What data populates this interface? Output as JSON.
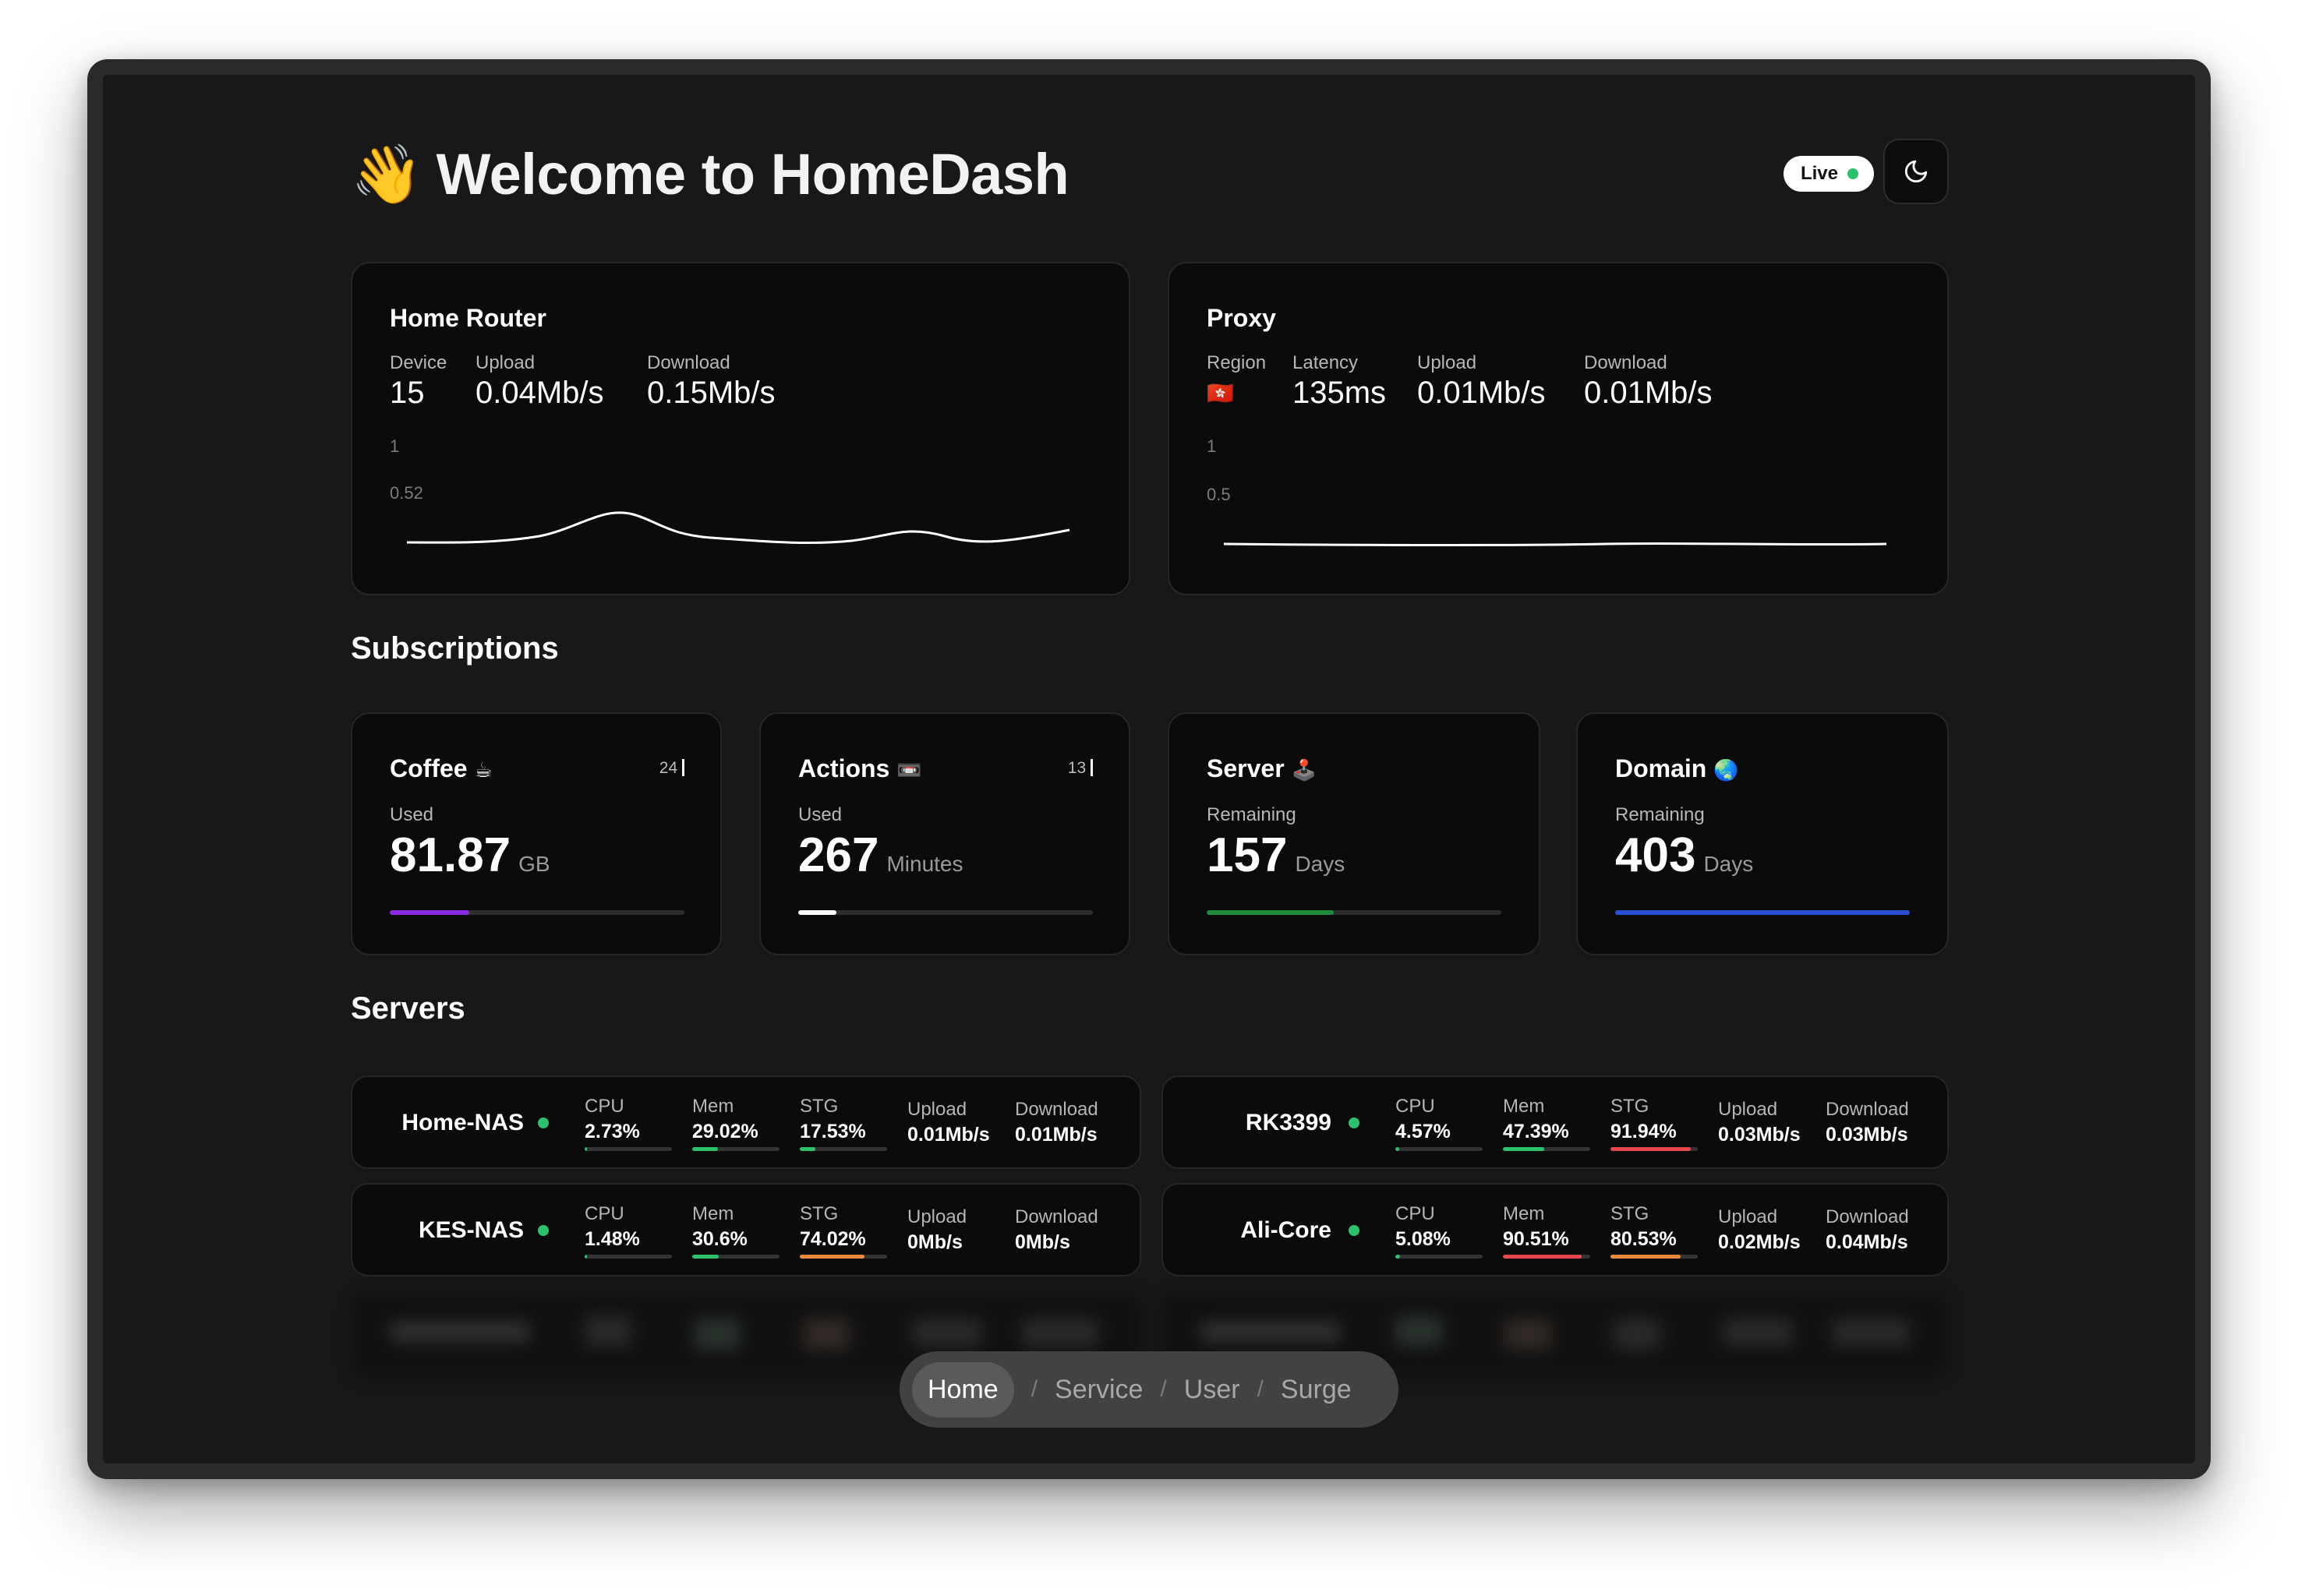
{
  "header": {
    "wave_emoji": "👋",
    "title": "Welcome to HomeDash",
    "live_label": "Live"
  },
  "router": {
    "title": "Home Router",
    "stats": [
      {
        "label": "Device",
        "value": "15"
      },
      {
        "label": "Upload",
        "value": "0.04Mb/s"
      },
      {
        "label": "Download",
        "value": "0.15Mb/s"
      }
    ],
    "axis_top": "1",
    "axis_mid": "0.52"
  },
  "proxy": {
    "title": "Proxy",
    "region_label": "Region",
    "region_flag": "🇭🇰",
    "stats": [
      {
        "label": "Latency",
        "value": "135ms"
      },
      {
        "label": "Upload",
        "value": "0.01Mb/s"
      },
      {
        "label": "Download",
        "value": "0.01Mb/s"
      }
    ],
    "axis_top": "1",
    "axis_mid": "0.5"
  },
  "subscriptions": {
    "title": "Subscriptions",
    "items": [
      {
        "name": "Coffee",
        "emoji": "☕",
        "count": "24",
        "label": "Used",
        "value": "81.87",
        "unit": "GB",
        "progress": 0.27,
        "color": "#8a2be2"
      },
      {
        "name": "Actions",
        "emoji": "📼",
        "count": "13",
        "label": "Used",
        "value": "267",
        "unit": "Minutes",
        "progress": 0.13,
        "color": "#ffffff"
      },
      {
        "name": "Server",
        "emoji": "🕹️",
        "count": "",
        "label": "Remaining",
        "value": "157",
        "unit": "Days",
        "progress": 0.43,
        "color": "#1f8a3c"
      },
      {
        "name": "Domain",
        "emoji": "🌏",
        "count": "",
        "label": "Remaining",
        "value": "403",
        "unit": "Days",
        "progress": 1.0,
        "color": "#2a4ed6"
      }
    ]
  },
  "servers": {
    "title": "Servers",
    "metric_labels": {
      "cpu": "CPU",
      "mem": "Mem",
      "stg": "STG",
      "upload": "Upload",
      "download": "Download"
    },
    "items": [
      {
        "name": "Home-NAS",
        "cpu": "2.73%",
        "cpu_p": 0.0273,
        "mem": "29.02%",
        "mem_p": 0.2902,
        "stg": "17.53%",
        "stg_p": 0.1753,
        "upload": "0.01Mb/s",
        "download": "0.01Mb/s"
      },
      {
        "name": "RK3399",
        "cpu": "4.57%",
        "cpu_p": 0.0457,
        "mem": "47.39%",
        "mem_p": 0.4739,
        "stg": "91.94%",
        "stg_p": 0.9194,
        "upload": "0.03Mb/s",
        "download": "0.03Mb/s"
      },
      {
        "name": "KES-NAS",
        "cpu": "1.48%",
        "cpu_p": 0.0148,
        "mem": "30.6%",
        "mem_p": 0.306,
        "stg": "74.02%",
        "stg_p": 0.7402,
        "upload": "0Mb/s",
        "download": "0Mb/s"
      },
      {
        "name": "Ali-Core",
        "cpu": "5.08%",
        "cpu_p": 0.0508,
        "mem": "90.51%",
        "mem_p": 0.9051,
        "stg": "80.53%",
        "stg_p": 0.8053,
        "upload": "0.02Mb/s",
        "download": "0.04Mb/s"
      }
    ],
    "colors": {
      "green": "#2bc26b",
      "orange": "#f08a3c",
      "red": "#e5484d"
    }
  },
  "nav": {
    "items": [
      "Home",
      "Service",
      "User",
      "Surge"
    ],
    "separator": "/",
    "active": "Home"
  }
}
